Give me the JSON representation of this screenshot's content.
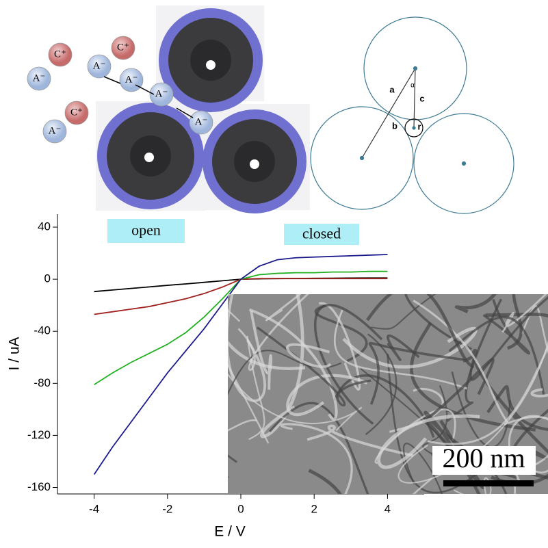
{
  "chart_data": {
    "type": "line",
    "x": [
      -4,
      -3.5,
      -3,
      -2.5,
      -2,
      -1.5,
      -1,
      -0.5,
      0,
      0.5,
      1,
      1.5,
      2,
      2.5,
      3,
      3.5,
      4
    ],
    "series": [
      {
        "color": "#000000",
        "values": [
          -9.5,
          -8.3,
          -7.1,
          -5.9,
          -4.7,
          -3.6,
          -2.4,
          -1.2,
          0,
          0.3,
          0.5,
          0.6,
          0.7,
          0.8,
          0.9,
          1,
          1
        ]
      },
      {
        "color": "#a0201c",
        "values": [
          -27,
          -25,
          -23,
          -21,
          -18,
          -15,
          -11,
          -6,
          0,
          0.5,
          0.5,
          0.5,
          0.5,
          0.5,
          0.5,
          0.5,
          0.5
        ]
      },
      {
        "color": "#22b022",
        "values": [
          -81,
          -72,
          -64,
          -57,
          -50,
          -41,
          -29,
          -15,
          0,
          3.5,
          4.5,
          5,
          5,
          5.5,
          5.5,
          6,
          6
        ]
      },
      {
        "color": "#1a1a8c",
        "values": [
          -150,
          -129,
          -110,
          -91,
          -72,
          -55,
          -38,
          -19,
          0,
          10,
          15,
          16.5,
          17,
          17.5,
          18,
          18.5,
          19
        ]
      }
    ],
    "xlabel": "E / V",
    "ylabel": "I / uA",
    "xlim": [
      -5,
      5
    ],
    "xticks": [
      -4,
      -2,
      0,
      2,
      4
    ],
    "ylim": [
      -165,
      50
    ],
    "yticks": [
      40,
      0,
      -40,
      -80,
      -120,
      -160
    ],
    "annotations": [
      "open",
      "closed"
    ]
  },
  "ion_diagram": {
    "labels": [
      "C⁺",
      "C⁺",
      "C⁺",
      "A⁻",
      "A⁻",
      "A⁻",
      "A⁻",
      "A⁻",
      "A⁻"
    ]
  },
  "geometry_diagram": {
    "labels": [
      "a",
      "b",
      "c",
      "r",
      "α"
    ]
  },
  "micrograph": {
    "scale_bar": "200 nm"
  }
}
